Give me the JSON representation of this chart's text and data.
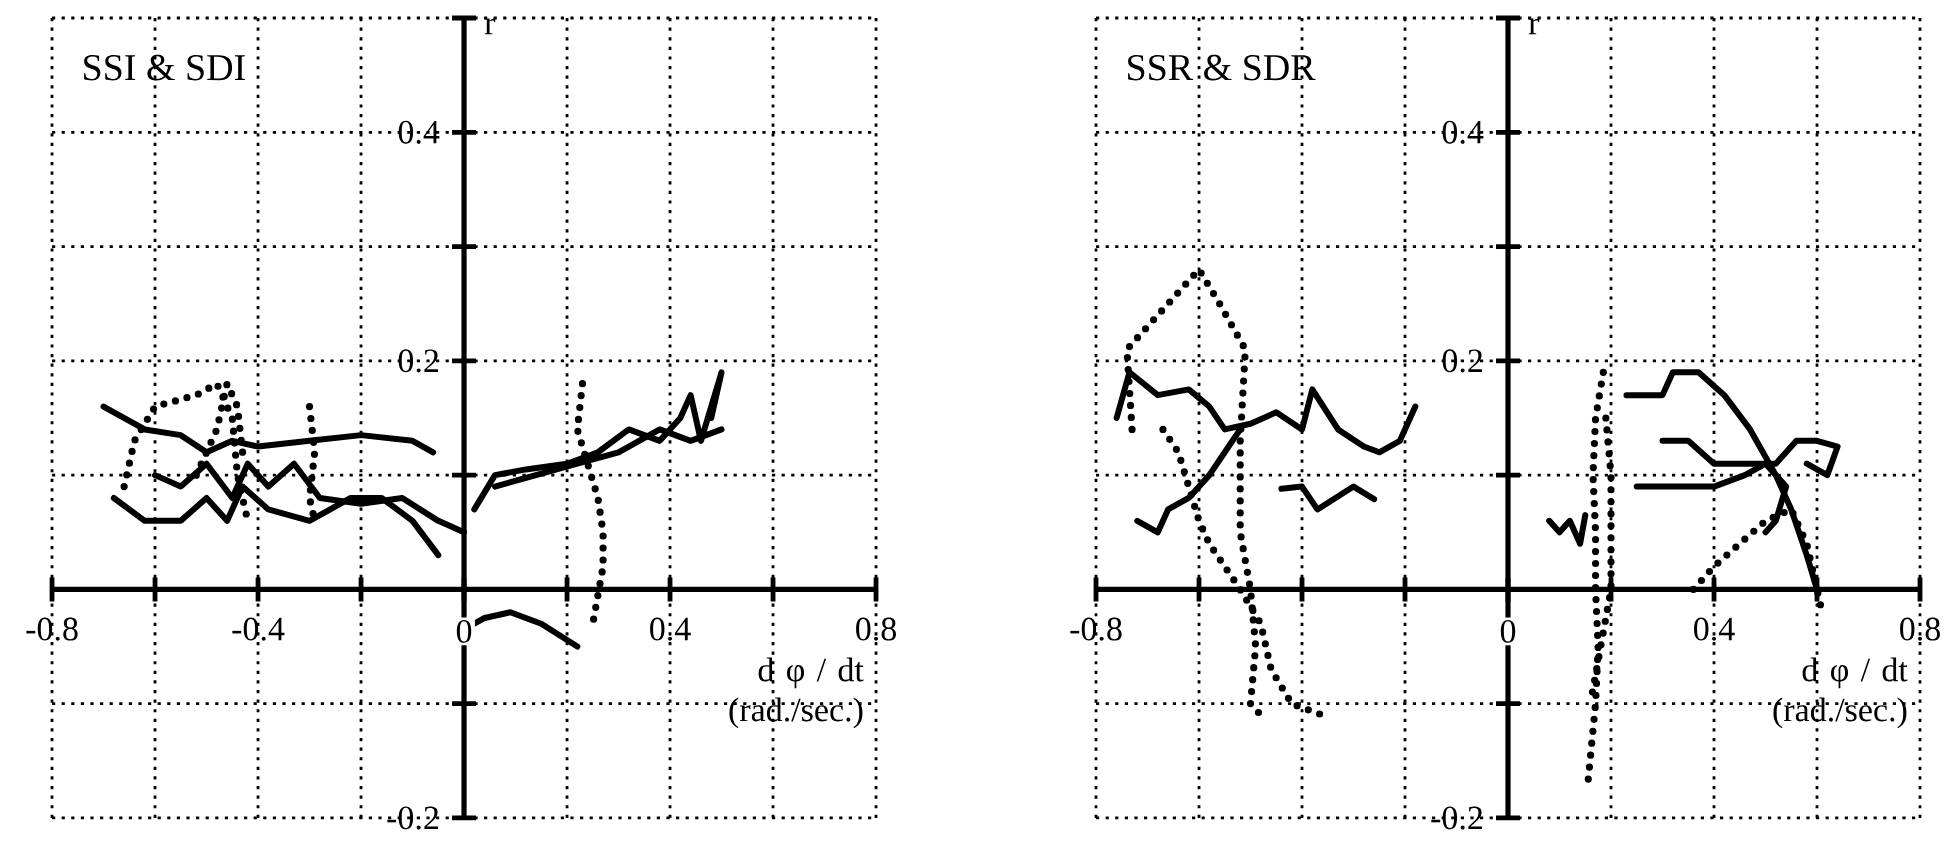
{
  "chart_data": [
    {
      "type": "line",
      "title": "SSI & SDI",
      "xlabel": "d φ / dt (rad./sec.)",
      "ylabel": "r",
      "xlim": [
        -0.8,
        0.8
      ],
      "ylim": [
        -0.2,
        0.5
      ],
      "xticks": [
        -0.8,
        {
          "value": -0.6,
          "label": null
        },
        -0.4,
        {
          "value": -0.2,
          "label": null
        },
        0,
        {
          "value": 0.2,
          "label": null
        },
        0.4,
        {
          "value": 0.6,
          "label": null
        },
        0.8
      ],
      "yticks": [
        -0.2,
        {
          "value": -0.1,
          "label": null
        },
        {
          "value": 0,
          "label": null
        },
        {
          "value": 0.1,
          "label": null
        },
        0.2,
        {
          "value": 0.3,
          "label": null
        },
        0.4,
        {
          "value": 0.5,
          "label": null
        }
      ],
      "grid": true,
      "series": [
        {
          "color": "#000000",
          "line_style": "solid",
          "x": [
            -0.7,
            -0.62,
            -0.55,
            -0.5,
            -0.45,
            -0.4,
            -0.3,
            -0.2,
            -0.1,
            -0.06
          ],
          "values": [
            0.16,
            0.14,
            0.135,
            0.12,
            0.13,
            0.125,
            0.13,
            0.135,
            0.13,
            0.12
          ]
        },
        {
          "color": "#000000",
          "line_style": "solid",
          "x": [
            -0.68,
            -0.62,
            -0.55,
            -0.5,
            -0.46,
            -0.43,
            -0.38,
            -0.3,
            -0.22,
            -0.16,
            -0.1,
            -0.05
          ],
          "values": [
            0.08,
            0.06,
            0.06,
            0.08,
            0.06,
            0.09,
            0.07,
            0.06,
            0.08,
            0.08,
            0.06,
            0.03
          ]
        },
        {
          "color": "#000000",
          "line_style": "solid",
          "x": [
            -0.6,
            -0.55,
            -0.5,
            -0.45,
            -0.42,
            -0.38,
            -0.33,
            -0.28,
            -0.2,
            -0.12,
            -0.05,
            0.0
          ],
          "values": [
            0.1,
            0.09,
            0.11,
            0.08,
            0.11,
            0.09,
            0.11,
            0.08,
            0.075,
            0.08,
            0.06,
            0.05
          ]
        },
        {
          "color": "#000000",
          "line_style": "dotted",
          "x": [
            -0.66,
            -0.64,
            -0.6,
            -0.52,
            -0.48,
            -0.45,
            -0.44,
            -0.42
          ],
          "values": [
            0.09,
            0.13,
            0.16,
            0.17,
            0.18,
            0.15,
            0.1,
            0.06
          ]
        },
        {
          "color": "#000000",
          "line_style": "dotted",
          "x": [
            -0.52,
            -0.48,
            -0.46,
            -0.44,
            -0.43
          ],
          "values": [
            0.1,
            0.14,
            0.18,
            0.16,
            0.12
          ]
        },
        {
          "color": "#000000",
          "line_style": "dotted",
          "x": [
            -0.3,
            -0.29,
            -0.3,
            -0.29
          ],
          "values": [
            0.16,
            0.12,
            0.08,
            0.06
          ]
        },
        {
          "color": "#000000",
          "line_style": "solid",
          "x": [
            0.02,
            0.06,
            0.12,
            0.2,
            0.26,
            0.32,
            0.38,
            0.42,
            0.44,
            0.46,
            0.48,
            0.5,
            0.48
          ],
          "values": [
            0.07,
            0.1,
            0.105,
            0.11,
            0.12,
            0.14,
            0.13,
            0.15,
            0.17,
            0.13,
            0.16,
            0.19,
            0.15
          ]
        },
        {
          "color": "#000000",
          "line_style": "solid",
          "x": [
            0.06,
            0.14,
            0.22,
            0.3,
            0.38,
            0.44,
            0.5
          ],
          "values": [
            0.09,
            0.1,
            0.11,
            0.12,
            0.14,
            0.13,
            0.14
          ]
        },
        {
          "color": "#000000",
          "line_style": "solid",
          "x": [
            0.0,
            0.04,
            0.09,
            0.15,
            0.22
          ],
          "values": [
            -0.035,
            -0.025,
            -0.02,
            -0.03,
            -0.05
          ]
        },
        {
          "color": "#000000",
          "line_style": "dotted",
          "x": [
            0.23,
            0.22,
            0.24,
            0.26,
            0.27,
            0.27,
            0.25
          ],
          "values": [
            0.18,
            0.14,
            0.11,
            0.08,
            0.05,
            0.02,
            -0.03
          ]
        }
      ]
    },
    {
      "type": "line",
      "title": "SSR & SDR",
      "xlabel": "d φ / dt (rad./sec.)",
      "ylabel": "r",
      "xlim": [
        -0.8,
        0.8
      ],
      "ylim": [
        -0.2,
        0.5
      ],
      "xticks": [
        -0.8,
        {
          "value": -0.6,
          "label": null
        },
        {
          "value": -0.4,
          "label": null
        },
        {
          "value": -0.2,
          "label": null
        },
        0,
        {
          "value": 0.2,
          "label": null
        },
        0.4,
        {
          "value": 0.6,
          "label": null
        },
        0.8
      ],
      "yticks": [
        -0.2,
        {
          "value": -0.1,
          "label": null
        },
        {
          "value": 0,
          "label": null
        },
        {
          "value": 0.1,
          "label": null
        },
        0.2,
        {
          "value": 0.3,
          "label": null
        },
        0.4,
        {
          "value": 0.5,
          "label": null
        }
      ],
      "grid": true,
      "series": [
        {
          "color": "#000000",
          "line_style": "solid",
          "x": [
            -0.76,
            -0.735,
            -0.68,
            -0.62,
            -0.58,
            -0.55,
            -0.5,
            -0.45,
            -0.4,
            -0.38,
            -0.33,
            -0.28,
            -0.25,
            -0.21,
            -0.18
          ],
          "values": [
            0.15,
            0.19,
            0.17,
            0.175,
            0.16,
            0.14,
            0.145,
            0.155,
            0.14,
            0.175,
            0.14,
            0.125,
            0.12,
            0.13,
            0.16
          ]
        },
        {
          "color": "#000000",
          "line_style": "solid",
          "x": [
            -0.72,
            -0.68,
            -0.66,
            -0.62,
            -0.58,
            -0.55,
            -0.52
          ],
          "values": [
            0.06,
            0.05,
            0.07,
            0.08,
            0.1,
            0.12,
            0.14
          ]
        },
        {
          "color": "#000000",
          "line_style": "solid",
          "x": [
            -0.44,
            -0.4,
            -0.37,
            -0.3,
            -0.26
          ],
          "values": [
            0.088,
            0.09,
            0.07,
            0.09,
            0.079
          ]
        },
        {
          "color": "#000000",
          "line_style": "dotted",
          "x": [
            -0.73,
            -0.74,
            -0.66,
            -0.6,
            -0.56,
            -0.51,
            -0.52,
            -0.52,
            -0.5,
            -0.49,
            -0.5,
            -0.47
          ],
          "values": [
            0.14,
            0.21,
            0.25,
            0.28,
            0.25,
            0.21,
            0.13,
            0.05,
            0.0,
            -0.05,
            -0.1,
            -0.115
          ]
        },
        {
          "color": "#000000",
          "line_style": "dotted",
          "x": [
            -0.67,
            -0.64,
            -0.62,
            -0.6,
            -0.58,
            -0.55,
            -0.52,
            -0.48,
            -0.46,
            -0.42,
            -0.36
          ],
          "values": [
            0.14,
            0.12,
            0.09,
            0.06,
            0.04,
            0.02,
            0.0,
            -0.03,
            -0.07,
            -0.1,
            -0.11
          ]
        },
        {
          "color": "#000000",
          "line_style": "dotted",
          "x": [
            0.185,
            0.17,
            0.165,
            0.17,
            0.17,
            0.175,
            0.17,
            0.155
          ],
          "values": [
            0.19,
            0.15,
            0.1,
            0.05,
            0.0,
            -0.05,
            -0.1,
            -0.17
          ]
        },
        {
          "color": "#000000",
          "line_style": "dotted",
          "x": [
            0.19,
            0.2,
            0.2,
            0.2,
            0.18,
            0.16
          ],
          "values": [
            0.15,
            0.1,
            0.05,
            0.0,
            -0.05,
            -0.1
          ]
        },
        {
          "color": "#000000",
          "line_style": "solid",
          "x": [
            0.08,
            0.1,
            0.12,
            0.14,
            0.15
          ],
          "values": [
            0.06,
            0.05,
            0.06,
            0.04,
            0.065
          ]
        },
        {
          "color": "#000000",
          "line_style": "solid",
          "x": [
            0.23,
            0.3,
            0.32,
            0.37,
            0.42,
            0.47,
            0.52,
            0.55,
            0.58,
            0.6
          ],
          "values": [
            0.17,
            0.17,
            0.19,
            0.19,
            0.17,
            0.14,
            0.1,
            0.07,
            0.03,
            0.0
          ]
        },
        {
          "color": "#000000",
          "line_style": "solid",
          "x": [
            0.3,
            0.35,
            0.4,
            0.46,
            0.52,
            0.56,
            0.6,
            0.64,
            0.62,
            0.58
          ],
          "values": [
            0.13,
            0.13,
            0.11,
            0.11,
            0.11,
            0.13,
            0.13,
            0.125,
            0.1,
            0.11
          ]
        },
        {
          "color": "#000000",
          "line_style": "solid",
          "x": [
            0.25,
            0.32,
            0.4,
            0.46,
            0.5,
            0.54,
            0.52,
            0.5
          ],
          "values": [
            0.09,
            0.09,
            0.09,
            0.1,
            0.11,
            0.09,
            0.06,
            0.05
          ]
        },
        {
          "color": "#000000",
          "line_style": "dotted",
          "x": [
            0.36,
            0.4,
            0.45,
            0.5,
            0.55,
            0.58,
            0.6,
            0.61
          ],
          "values": [
            0.0,
            0.02,
            0.04,
            0.06,
            0.07,
            0.04,
            0.0,
            -0.02
          ]
        }
      ]
    }
  ]
}
